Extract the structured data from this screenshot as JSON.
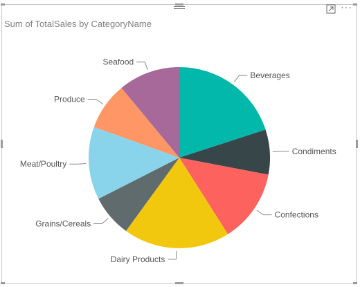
{
  "visual": {
    "title": "Sum of TotalSales by CategoryName",
    "icons": {
      "drag": "drag-handle-icon",
      "focus": "focus-mode-icon",
      "more": "more-options-icon"
    }
  },
  "chart_data": {
    "type": "pie",
    "title": "Sum of TotalSales by CategoryName",
    "categories": [
      "Beverages",
      "Condiments",
      "Confections",
      "Dairy Products",
      "Grains/Cereals",
      "Meat/Poultry",
      "Produce",
      "Seafood"
    ],
    "values": [
      20.0,
      8.0,
      13.0,
      19.0,
      7.5,
      13.0,
      8.5,
      11.0
    ],
    "colors": [
      "#01b8aa",
      "#374649",
      "#fd625e",
      "#f2c80f",
      "#5f6b6d",
      "#8ad4eb",
      "#fe9666",
      "#a66999"
    ],
    "legend": "none",
    "data_labels": "category"
  }
}
